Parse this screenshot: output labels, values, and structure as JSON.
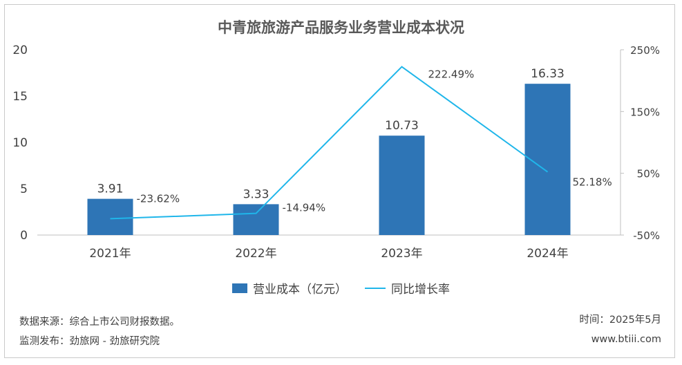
{
  "chart_data": {
    "type": "bar",
    "title": "中青旅旅游产品服务业务营业成本状况",
    "categories": [
      "2021年",
      "2022年",
      "2023年",
      "2024年"
    ],
    "series": [
      {
        "name": "营业成本（亿元）",
        "type": "bar",
        "axis": "left",
        "values": [
          3.91,
          3.33,
          10.73,
          16.33
        ],
        "labels": [
          "3.91",
          "3.33",
          "10.73",
          "16.33"
        ],
        "color": "#2e75b6"
      },
      {
        "name": "同比增长率",
        "type": "line",
        "axis": "right",
        "values": [
          -23.62,
          -14.94,
          222.49,
          52.18
        ],
        "labels": [
          "-23.62%",
          "-14.94%",
          "222.49%",
          "52.18%"
        ],
        "color": "#1fb6ea"
      }
    ],
    "y_left": {
      "ylim": [
        0,
        20
      ],
      "ticks": [
        "0",
        "5",
        "10",
        "15",
        "20"
      ]
    },
    "y_right": {
      "ylim": [
        -50,
        250
      ],
      "ticks": [
        "-50%",
        "50%",
        "150%",
        "250%"
      ]
    },
    "grid": false,
    "legend": "bottom"
  },
  "footer": {
    "source": "数据来源：综合上市公司财报数据。",
    "publisher": "监测发布：劲旅网 - 劲旅研究院",
    "time": "时间：2025年5月",
    "website": "www.btiii.com"
  }
}
